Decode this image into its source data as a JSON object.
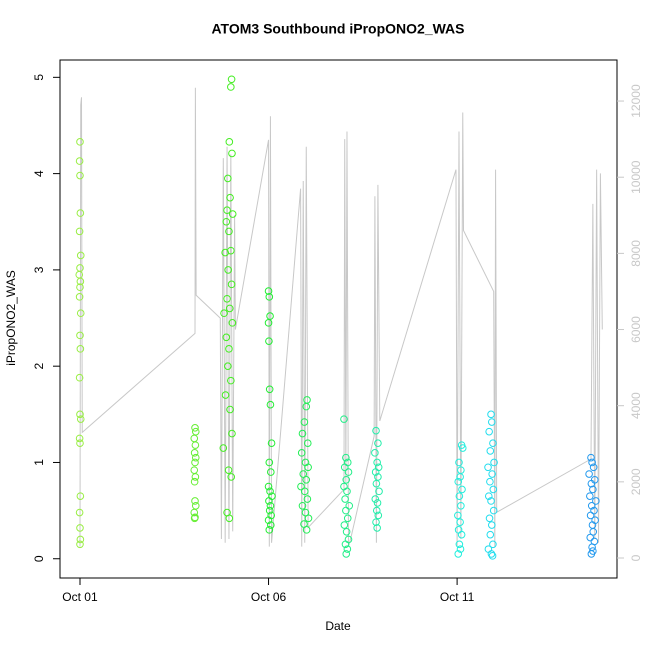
{
  "chart_data": {
    "type": "scatter",
    "title": "ATOM3 Southbound iPropONO2_WAS",
    "xlabel": "Date",
    "ylabel": "iPropONO2_WAS",
    "xlim": [
      0.47,
      15.24
    ],
    "ylim": [
      -0.2,
      5.18
    ],
    "y2lim": [
      -525,
      13078
    ],
    "xticks": [
      {
        "value": 1,
        "label": "Oct 01"
      },
      {
        "value": 6,
        "label": "Oct 06"
      },
      {
        "value": 11,
        "label": "Oct 11"
      }
    ],
    "yticks": [
      0,
      1,
      2,
      3,
      4,
      5
    ],
    "y2ticks": [
      0,
      2000,
      4000,
      6000,
      8000,
      10000,
      12000
    ],
    "series": [
      {
        "type": "line",
        "axis": "y2",
        "color": "#c8c8c8",
        "x": [
          1.0,
          1.02,
          1.04,
          1.06,
          4.05,
          4.06,
          4.08,
          4.72,
          4.75,
          4.8,
          4.85,
          4.9,
          4.95,
          5.0,
          5.05,
          5.1,
          5.12,
          6.0,
          6.02,
          6.05,
          6.08,
          6.85,
          6.88,
          6.92,
          6.96,
          7.0,
          7.05,
          8.0,
          8.02,
          8.05,
          8.08,
          8.12,
          8.2,
          8.8,
          8.82,
          8.86,
          8.9,
          8.95,
          10.97,
          11.0,
          11.05,
          11.1,
          11.15,
          11.17,
          11.97,
          12.0,
          12.02,
          12.05,
          14.55,
          14.6,
          14.65,
          14.7,
          14.75,
          14.8,
          14.85
        ],
        "values": [
          300,
          11900,
          12100,
          3300,
          5900,
          12350,
          6900,
          6300,
          500,
          10500,
          400,
          10800,
          500,
          10600,
          700,
          9000,
          6000,
          10980,
          300,
          11600,
          400,
          9700,
          300,
          9900,
          400,
          10800,
          800,
          1800,
          11000,
          2000,
          11200,
          300,
          600,
          3200,
          9500,
          400,
          9800,
          3600,
          10200,
          300,
          11200,
          500,
          11700,
          8600,
          7000,
          300,
          10200,
          1200,
          2600,
          9300,
          500,
          10200,
          400,
          10100,
          6000
        ]
      },
      {
        "color": "#99ee44",
        "x": [
          1.0,
          0.99,
          1.0,
          1.01,
          0.99,
          1.02,
          1.0,
          0.98,
          1.01,
          1.0,
          0.99,
          1.02,
          1.0,
          1.01,
          0.99,
          1.0,
          1.02,
          0.99,
          1.0,
          1.01,
          0.99,
          1.0,
          1.01,
          1.0
        ],
        "values": [
          4.33,
          4.13,
          3.98,
          3.59,
          3.4,
          3.15,
          3.02,
          2.95,
          2.88,
          2.82,
          2.72,
          2.55,
          2.32,
          2.18,
          1.88,
          1.5,
          1.45,
          1.25,
          1.2,
          0.65,
          0.48,
          0.32,
          0.2,
          0.15
        ]
      },
      {
        "color": "#66ee33",
        "x": [
          4.05,
          4.07,
          4.03,
          4.06,
          4.04,
          4.07,
          4.05,
          4.03,
          4.06,
          4.04,
          4.05,
          4.07,
          4.03,
          4.05,
          4.04
        ],
        "values": [
          1.36,
          1.32,
          1.25,
          1.18,
          1.1,
          1.05,
          1.0,
          0.92,
          0.85,
          0.8,
          0.6,
          0.55,
          0.48,
          0.43,
          0.42
        ]
      },
      {
        "color": "#44ee22",
        "x": [
          5.02,
          5.0,
          4.96,
          5.03,
          4.92,
          4.98,
          4.9,
          5.05,
          4.88,
          4.95,
          5.0,
          4.85,
          4.93,
          5.02,
          4.9,
          4.97,
          4.82,
          5.04,
          4.88,
          4.95,
          4.92,
          5.0,
          4.86,
          4.98,
          5.03,
          4.8,
          4.94,
          5.01,
          4.9,
          4.96
        ],
        "values": [
          4.98,
          4.9,
          4.33,
          4.21,
          3.95,
          3.75,
          3.62,
          3.58,
          3.5,
          3.4,
          3.2,
          3.18,
          3.0,
          2.85,
          2.7,
          2.6,
          2.55,
          2.45,
          2.3,
          2.18,
          2.0,
          1.85,
          1.7,
          1.55,
          1.3,
          1.15,
          0.92,
          0.85,
          0.48,
          0.42
        ]
      },
      {
        "color": "#22ee33",
        "x": [
          6.0,
          6.02,
          6.04,
          6.0,
          6.01,
          6.03,
          6.05,
          6.08,
          6.02,
          6.06,
          6.0,
          6.04,
          6.09,
          6.01,
          6.05,
          6.03,
          6.07,
          6.0,
          6.06,
          6.02
        ],
        "values": [
          2.78,
          2.72,
          2.52,
          2.45,
          2.26,
          1.76,
          1.6,
          1.2,
          1.0,
          0.9,
          0.75,
          0.7,
          0.65,
          0.6,
          0.55,
          0.5,
          0.45,
          0.4,
          0.35,
          0.3
        ]
      },
      {
        "color": "#22ee55",
        "x": [
          7.02,
          7.0,
          6.95,
          6.9,
          7.04,
          6.88,
          6.98,
          7.05,
          6.92,
          7.0,
          6.86,
          6.96,
          7.03,
          6.9,
          6.98,
          7.06,
          6.94,
          7.01
        ],
        "values": [
          1.65,
          1.58,
          1.42,
          1.3,
          1.2,
          1.1,
          1.0,
          0.95,
          0.88,
          0.82,
          0.75,
          0.7,
          0.62,
          0.55,
          0.48,
          0.42,
          0.36,
          0.3
        ]
      },
      {
        "color": "#22ee88",
        "x": [
          8.0,
          8.05,
          8.1,
          8.02,
          8.12,
          8.06,
          8.0,
          8.08,
          8.03,
          8.14,
          8.05,
          8.1,
          8.01,
          8.07,
          8.12,
          8.04,
          8.09,
          8.06
        ],
        "values": [
          1.45,
          1.05,
          1.0,
          0.95,
          0.9,
          0.82,
          0.75,
          0.7,
          0.62,
          0.55,
          0.5,
          0.42,
          0.35,
          0.28,
          0.2,
          0.15,
          0.1,
          0.05
        ]
      },
      {
        "color": "#22eeaa",
        "x": [
          8.85,
          8.9,
          8.82,
          8.88,
          8.92,
          8.84,
          8.9,
          8.86,
          8.93,
          8.83,
          8.89,
          8.87,
          8.91,
          8.85,
          8.88
        ],
        "values": [
          1.33,
          1.2,
          1.1,
          1.0,
          0.95,
          0.9,
          0.85,
          0.78,
          0.7,
          0.62,
          0.58,
          0.5,
          0.45,
          0.38,
          0.32
        ]
      },
      {
        "color": "#22eedd",
        "x": [
          11.12,
          11.15,
          11.05,
          11.1,
          11.08,
          11.03,
          11.13,
          11.06,
          11.1,
          11.02,
          11.08,
          11.04,
          11.12,
          11.06,
          11.09,
          11.03
        ],
        "values": [
          1.18,
          1.15,
          1.0,
          0.92,
          0.85,
          0.8,
          0.72,
          0.65,
          0.55,
          0.45,
          0.38,
          0.3,
          0.25,
          0.15,
          0.1,
          0.05
        ]
      },
      {
        "color": "#22ddee",
        "x": [
          11.9,
          11.92,
          11.85,
          11.95,
          11.88,
          11.98,
          11.82,
          11.93,
          11.87,
          11.96,
          11.84,
          11.9,
          11.97,
          11.86,
          11.92,
          11.88,
          11.95,
          11.83,
          11.91,
          11.94
        ],
        "values": [
          1.5,
          1.42,
          1.32,
          1.2,
          1.12,
          1.0,
          0.95,
          0.88,
          0.8,
          0.72,
          0.65,
          0.6,
          0.5,
          0.42,
          0.35,
          0.25,
          0.15,
          0.1,
          0.05,
          0.03
        ]
      },
      {
        "color": "#2299ee",
        "x": [
          14.55,
          14.58,
          14.62,
          14.5,
          14.65,
          14.56,
          14.6,
          14.52,
          14.68,
          14.57,
          14.63,
          14.54,
          14.66,
          14.59,
          14.61,
          14.53,
          14.64,
          14.58,
          14.6,
          14.56
        ],
        "values": [
          1.05,
          1.0,
          0.95,
          0.88,
          0.82,
          0.78,
          0.72,
          0.65,
          0.6,
          0.55,
          0.5,
          0.45,
          0.4,
          0.35,
          0.28,
          0.22,
          0.18,
          0.12,
          0.08,
          0.05
        ]
      }
    ]
  }
}
